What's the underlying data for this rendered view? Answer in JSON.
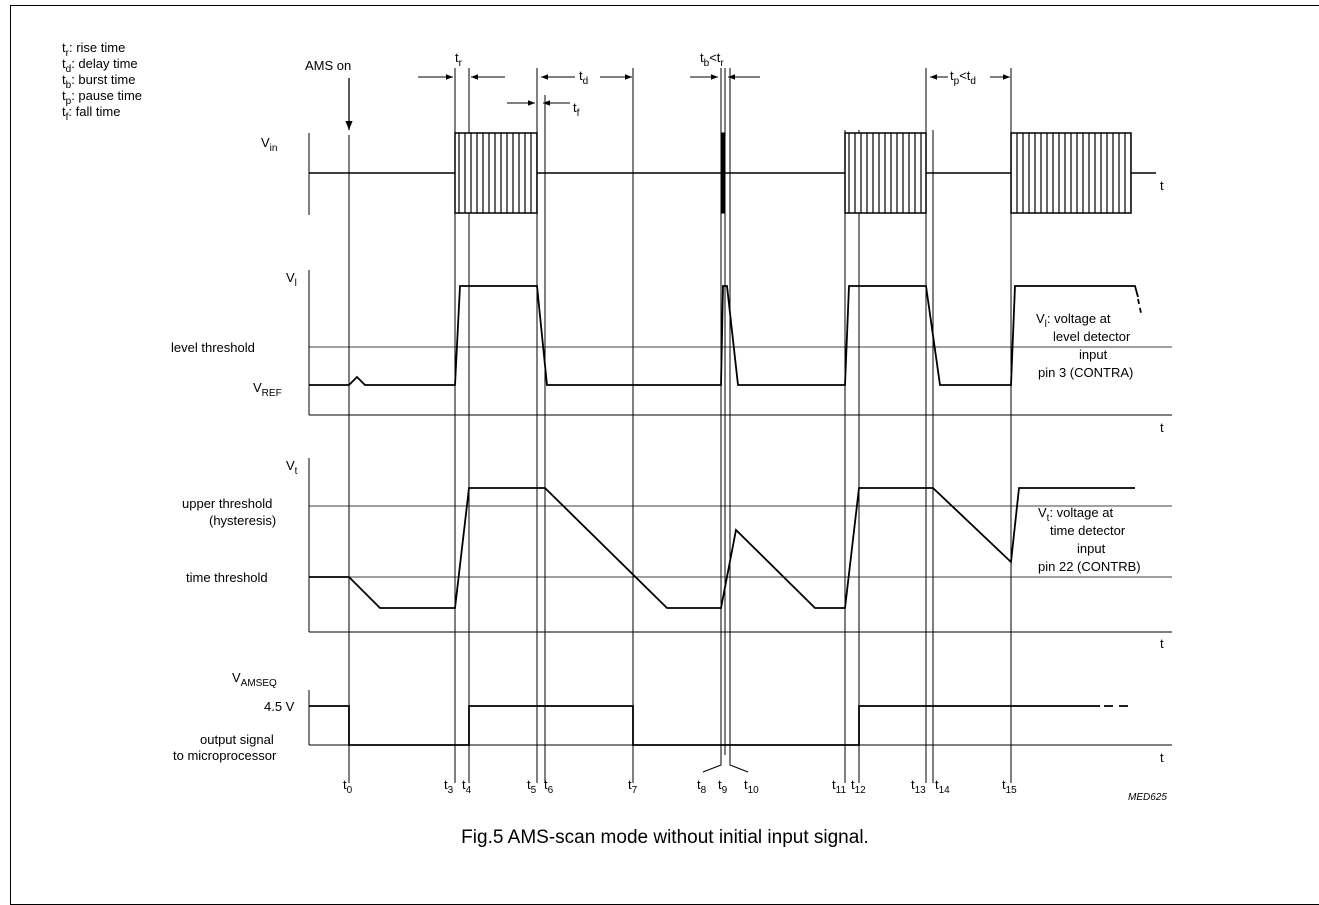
{
  "legend": [
    {
      "sym": "t",
      "sub": "r",
      "text": ": rise time"
    },
    {
      "sym": "t",
      "sub": "d",
      "text": ": delay time"
    },
    {
      "sym": "t",
      "sub": "b",
      "text": ": burst time"
    },
    {
      "sym": "t",
      "sub": "p",
      "text": ": pause time"
    },
    {
      "sym": "t",
      "sub": "f",
      "text": ": fall time"
    }
  ],
  "ams_on": "AMS on",
  "top_markers": {
    "tr": {
      "sym": "t",
      "sub": "r"
    },
    "td": {
      "sym": "t",
      "sub": "d"
    },
    "tf": {
      "sym": "t",
      "sub": "f"
    },
    "tb_lt_tr": {
      "sym1": "t",
      "sub1": "b",
      "mid": "<t",
      "sub2": "r"
    },
    "tp_lt_td": {
      "sym1": "t",
      "sub1": "p",
      "mid": "<t",
      "sub2": "d"
    }
  },
  "vin": {
    "sym": "V",
    "sub": "in"
  },
  "vl": {
    "sym": "V",
    "sub": "l"
  },
  "vl_note": {
    "sym": "V",
    "sub": "l",
    "lines": [
      ": voltage at",
      "level detector",
      "input",
      "pin 3 (CONTRA)"
    ]
  },
  "level_threshold": "level threshold",
  "vref": {
    "sym": "V",
    "sub": "REF"
  },
  "vt": {
    "sym": "V",
    "sub": "t"
  },
  "vt_note": {
    "sym": "V",
    "sub": "t",
    "lines": [
      ": voltage at",
      "time detector",
      "input",
      "pin 22 (CONTRB)"
    ]
  },
  "upper_threshold": [
    "upper threshold",
    "(hysteresis)"
  ],
  "time_threshold": "time threshold",
  "vamseq": {
    "sym": "V",
    "sub": "AMSEQ"
  },
  "v45": "4.5 V",
  "output_signal": [
    "output signal",
    "to microprocessor"
  ],
  "axis_t": "t",
  "time_labels": [
    {
      "sym": "t",
      "sub": "0"
    },
    {
      "sym": "t",
      "sub": "3"
    },
    {
      "sym": "t",
      "sub": "4"
    },
    {
      "sym": "t",
      "sub": "5"
    },
    {
      "sym": "t",
      "sub": "6"
    },
    {
      "sym": "t",
      "sub": "7"
    },
    {
      "sym": "t",
      "sub": "8"
    },
    {
      "sym": "t",
      "sub": "9"
    },
    {
      "sym": "t",
      "sub": "10"
    },
    {
      "sym": "t",
      "sub": "11"
    },
    {
      "sym": "t",
      "sub": "12"
    },
    {
      "sym": "t",
      "sub": "13"
    },
    {
      "sym": "t",
      "sub": "14"
    },
    {
      "sym": "t",
      "sub": "15"
    }
  ],
  "code": "MED625",
  "caption": "Fig.5  AMS-scan mode without initial input signal."
}
